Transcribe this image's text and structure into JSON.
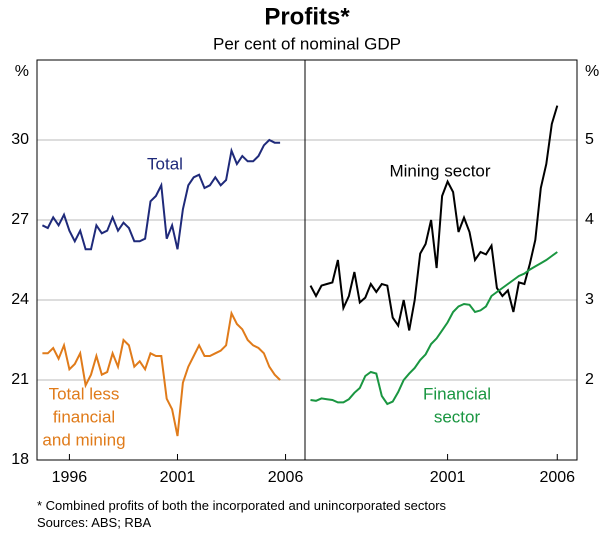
{
  "header": {
    "title": "Profits*",
    "subtitle": "Per cent of nominal GDP"
  },
  "chart_data": [
    {
      "type": "line",
      "y_unit": "%",
      "y_axis_side": "left",
      "xlim": [
        1994.5,
        2006.9
      ],
      "xticks": [
        1996,
        2001,
        2006
      ],
      "ylim": [
        18,
        33
      ],
      "yticks": [
        18,
        21,
        24,
        27,
        30
      ],
      "grid": true,
      "series": [
        {
          "label": [
            "Total"
          ],
          "color": "#1f2a7a",
          "x": [
            1994.75,
            1995,
            1995.25,
            1995.5,
            1995.75,
            1996,
            1996.25,
            1996.5,
            1996.75,
            1997,
            1997.25,
            1997.5,
            1997.75,
            1998,
            1998.25,
            1998.5,
            1998.75,
            1999,
            1999.25,
            1999.5,
            1999.75,
            2000,
            2000.25,
            2000.5,
            2000.75,
            2001,
            2001.25,
            2001.5,
            2001.75,
            2002,
            2002.25,
            2002.5,
            2002.75,
            2003,
            2003.25,
            2003.5,
            2003.75,
            2004,
            2004.25,
            2004.5,
            2004.75,
            2005,
            2005.25,
            2005.5,
            2005.75
          ],
          "values": [
            26.8,
            26.7,
            27.1,
            26.8,
            27.2,
            26.6,
            26.2,
            26.6,
            25.9,
            25.9,
            26.8,
            26.5,
            26.6,
            27.1,
            26.6,
            26.9,
            26.7,
            26.2,
            26.2,
            26.3,
            27.7,
            27.9,
            28.3,
            26.3,
            26.8,
            25.9,
            27.4,
            28.3,
            28.6,
            28.7,
            28.2,
            28.3,
            28.6,
            28.3,
            28.5,
            29.6,
            29.1,
            29.4,
            29.2,
            29.2,
            29.4,
            29.8,
            30.0,
            29.9,
            29.9
          ]
        },
        {
          "label": [
            "Total less",
            "financial",
            "and mining"
          ],
          "color": "#e07b1a",
          "x": [
            1994.75,
            1995,
            1995.25,
            1995.5,
            1995.75,
            1996,
            1996.25,
            1996.5,
            1996.75,
            1997,
            1997.25,
            1997.5,
            1997.75,
            1998,
            1998.25,
            1998.5,
            1998.75,
            1999,
            1999.25,
            1999.5,
            1999.75,
            2000,
            2000.25,
            2000.5,
            2000.75,
            2001,
            2001.25,
            2001.5,
            2001.75,
            2002,
            2002.25,
            2002.5,
            2002.75,
            2003,
            2003.25,
            2003.5,
            2003.75,
            2004,
            2004.25,
            2004.5,
            2004.75,
            2005,
            2005.25,
            2005.5,
            2005.75
          ],
          "values": [
            22.0,
            22.0,
            22.2,
            21.8,
            22.3,
            21.4,
            21.6,
            22.0,
            20.8,
            21.2,
            21.9,
            21.2,
            21.3,
            22.0,
            21.5,
            22.5,
            22.3,
            21.5,
            21.7,
            21.4,
            22.0,
            21.9,
            21.9,
            20.3,
            19.9,
            18.9,
            20.9,
            21.5,
            21.9,
            22.3,
            21.9,
            21.9,
            22.0,
            22.1,
            22.3,
            23.5,
            23.1,
            22.9,
            22.5,
            22.3,
            22.2,
            22.0,
            21.5,
            21.2,
            21.0
          ]
        }
      ]
    },
    {
      "type": "line",
      "y_unit": "%",
      "y_axis_side": "right",
      "xlim": [
        1994.5,
        2006.9
      ],
      "xticks": [
        2001,
        2006
      ],
      "ylim": [
        1,
        6
      ],
      "yticks": [
        2,
        3,
        4,
        5
      ],
      "grid": true,
      "series": [
        {
          "label": [
            "Mining sector"
          ],
          "color": "#000000",
          "x": [
            1994.75,
            1995,
            1995.25,
            1995.5,
            1995.75,
            1996,
            1996.25,
            1996.5,
            1996.75,
            1997,
            1997.25,
            1997.5,
            1997.75,
            1998,
            1998.25,
            1998.5,
            1998.75,
            1999,
            1999.25,
            1999.5,
            1999.75,
            2000,
            2000.25,
            2000.5,
            2000.75,
            2001,
            2001.25,
            2001.5,
            2001.75,
            2002,
            2002.25,
            2002.5,
            2002.75,
            2003,
            2003.25,
            2003.5,
            2003.75,
            2004,
            2004.25,
            2004.5,
            2004.75,
            2005,
            2005.25,
            2005.5,
            2005.75,
            2006
          ],
          "values": [
            3.18,
            3.05,
            3.18,
            3.2,
            3.22,
            3.5,
            2.9,
            3.05,
            3.35,
            2.97,
            3.03,
            3.2,
            3.1,
            3.2,
            3.18,
            2.78,
            2.68,
            3.0,
            2.62,
            3.0,
            3.58,
            3.7,
            4.0,
            3.4,
            4.3,
            4.48,
            4.35,
            3.85,
            4.03,
            3.85,
            3.5,
            3.6,
            3.57,
            3.68,
            3.15,
            3.05,
            3.12,
            2.85,
            3.22,
            3.2,
            3.45,
            3.75,
            4.4,
            4.7,
            5.2,
            5.43
          ]
        },
        {
          "label": [
            "Financial",
            "sector"
          ],
          "color": "#1a9641",
          "x": [
            1994.75,
            1995,
            1995.25,
            1995.5,
            1995.75,
            1996,
            1996.25,
            1996.5,
            1996.75,
            1997,
            1997.25,
            1997.5,
            1997.75,
            1998,
            1998.25,
            1998.5,
            1998.75,
            1999,
            1999.25,
            1999.5,
            1999.75,
            2000,
            2000.25,
            2000.5,
            2000.75,
            2001,
            2001.25,
            2001.5,
            2001.75,
            2002,
            2002.25,
            2002.5,
            2002.75,
            2003,
            2003.25,
            2003.5,
            2003.75,
            2004,
            2004.25,
            2004.5,
            2004.75,
            2005,
            2005.25,
            2005.5,
            2005.75,
            2006
          ],
          "values": [
            1.75,
            1.74,
            1.77,
            1.76,
            1.75,
            1.72,
            1.72,
            1.76,
            1.84,
            1.9,
            2.05,
            2.1,
            2.08,
            1.8,
            1.7,
            1.73,
            1.85,
            2.0,
            2.08,
            2.15,
            2.25,
            2.32,
            2.45,
            2.52,
            2.62,
            2.72,
            2.85,
            2.92,
            2.95,
            2.94,
            2.85,
            2.87,
            2.92,
            3.05,
            3.1,
            3.15,
            3.2,
            3.25,
            3.3,
            3.33,
            3.38,
            3.42,
            3.46,
            3.5,
            3.55,
            3.6
          ]
        }
      ]
    }
  ],
  "notes": [
    "*  Combined profits of both the incorporated and unincorporated sectors",
    "Sources: ABS; RBA"
  ]
}
